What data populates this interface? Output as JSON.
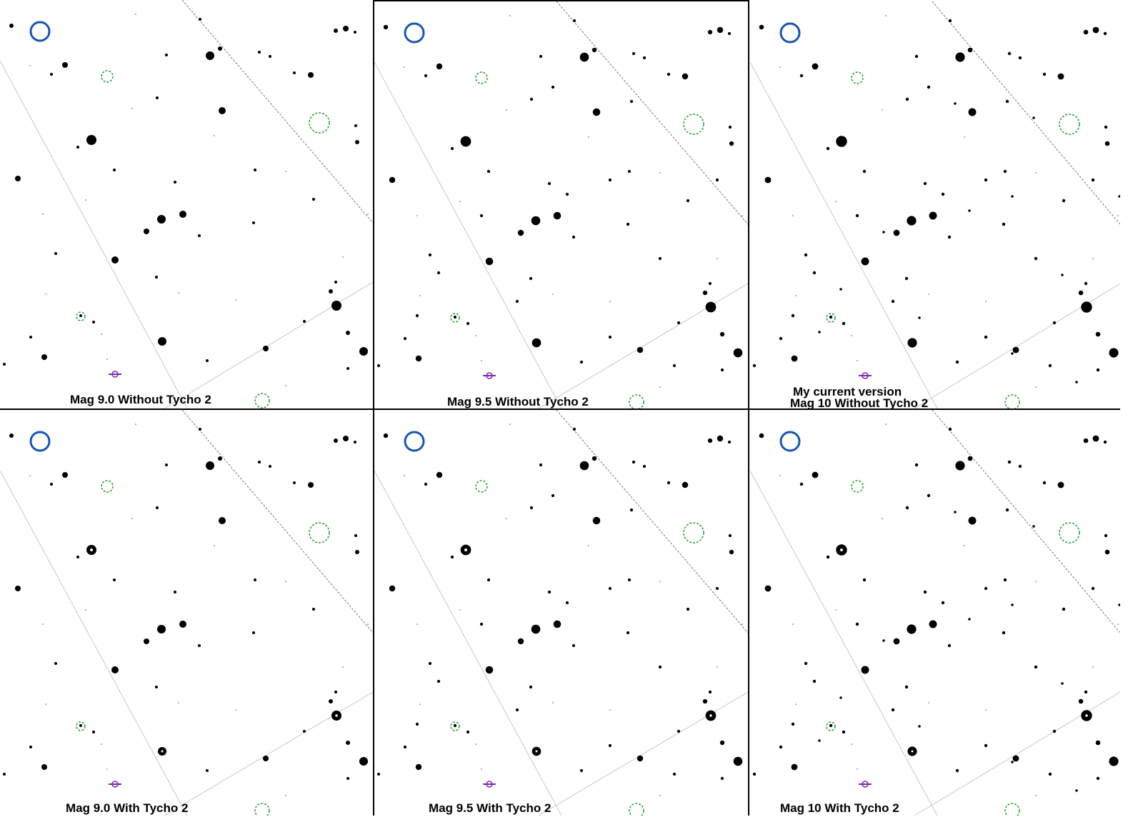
{
  "colors": {
    "background": "#ffffff",
    "stars": "#000000",
    "marker_blue": "#1a56b0",
    "marker_green": "#22a02a",
    "marker_purple": "#7a2ab0",
    "grid_line": "#c8c8c8"
  },
  "panels": [
    {
      "label": "Mag 9.0 Without Tycho 2",
      "extra_label": ""
    },
    {
      "label": "Mag 9.5 Without Tycho 2",
      "extra_label": ""
    },
    {
      "label": "Mag 10 Without Tycho 2",
      "extra_label": "My current version"
    },
    {
      "label": "Mag  9.0 With Tycho 2",
      "extra_label": ""
    },
    {
      "label": "Mag 9.5 With Tycho 2",
      "extra_label": ""
    },
    {
      "label": "Mag 10 With Tycho 2",
      "extra_label": ""
    }
  ]
}
